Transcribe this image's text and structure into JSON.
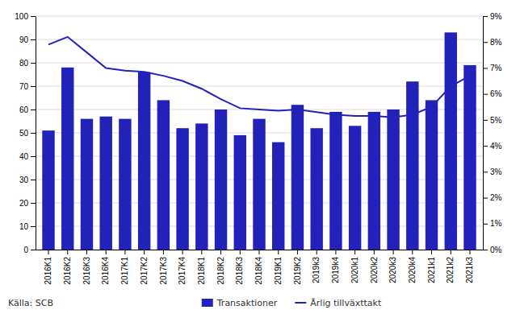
{
  "chart_data": {
    "type": "bar",
    "categories": [
      "2016K1",
      "2016K2",
      "2016K3",
      "2016K4",
      "2017K1",
      "2017K2",
      "2017K3",
      "2017K4",
      "2018K1",
      "2018K2",
      "2018K3",
      "2018K4",
      "2019K1",
      "2019K2",
      "2019k3",
      "2019k4",
      "2020k1",
      "2020k2",
      "2020k3",
      "2020k4",
      "2021k1",
      "2021k2",
      "2021k3"
    ],
    "series": [
      {
        "name": "Transaktioner",
        "type": "bar",
        "color": "#2222bb",
        "values": [
          51,
          78,
          56,
          57,
          56,
          76,
          64,
          52,
          54,
          60,
          49,
          56,
          46,
          62,
          52,
          59,
          53,
          59,
          60,
          72,
          64,
          93,
          79
        ]
      },
      {
        "name": "Årlig tillväxttakt",
        "type": "line",
        "axis": "y2",
        "color": "#2222bb",
        "values": [
          7.9,
          8.2,
          7.6,
          7.0,
          6.9,
          6.85,
          6.7,
          6.5,
          6.2,
          5.8,
          5.45,
          5.4,
          5.35,
          5.4,
          5.3,
          5.2,
          5.15,
          5.15,
          5.1,
          5.2,
          5.5,
          6.3,
          6.7
        ]
      }
    ],
    "ylim": [
      0,
      100
    ],
    "yticks": [
      0,
      10,
      20,
      30,
      40,
      50,
      60,
      70,
      80,
      90,
      100
    ],
    "y2lim": [
      0,
      9
    ],
    "y2ticks": [
      {
        "value": 0,
        "label": "0%"
      },
      {
        "value": 1,
        "label": "1%"
      },
      {
        "value": 2,
        "label": "2%"
      },
      {
        "value": 3,
        "label": "3%"
      },
      {
        "value": 4,
        "label": "4%"
      },
      {
        "value": 5,
        "label": "5%"
      },
      {
        "value": 6,
        "label": "6%"
      },
      {
        "value": 7,
        "label": "7%"
      },
      {
        "value": 8,
        "label": "8%"
      },
      {
        "value": 9,
        "label": "9%"
      }
    ],
    "grid": true,
    "legend": "bottom",
    "source": "Källa: SCB"
  }
}
